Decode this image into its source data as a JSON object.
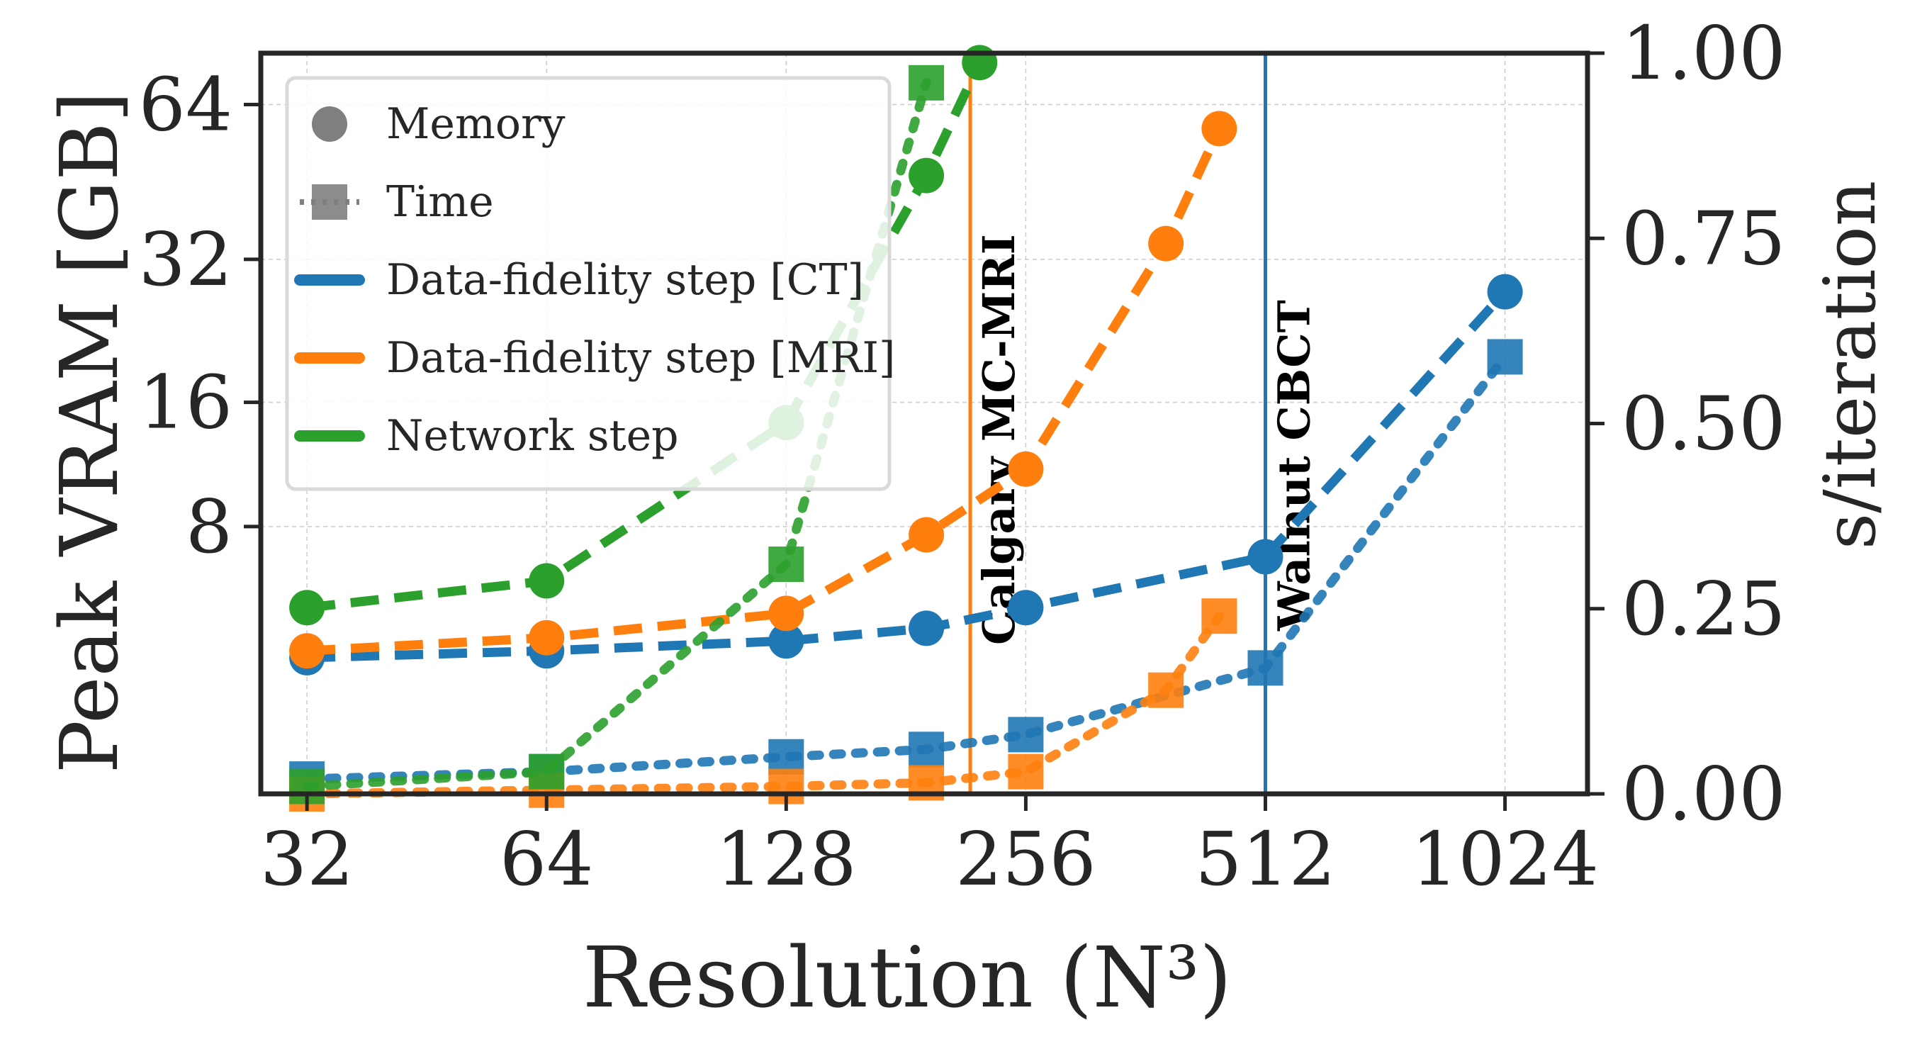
{
  "chart_data": {
    "type": "line",
    "xlabel": "Resolution (N³)",
    "ylabel_left": "Peak VRAM [GB]",
    "ylabel_right": "s/iteration",
    "x_scale": "log2",
    "x_ticks": [
      32,
      64,
      128,
      256,
      512,
      1024
    ],
    "x_tick_labels": [
      "32",
      "64",
      "128",
      "256",
      "512",
      "1024"
    ],
    "xlim": [
      28,
      1300
    ],
    "y_left_scale": "symlog",
    "y_left_ticks": [
      8,
      16,
      32,
      64
    ],
    "y_left_tick_labels": [
      "8",
      "16",
      "32",
      "64"
    ],
    "y_left_lim": [
      0,
      80
    ],
    "y_right_ticks": [
      0.0,
      0.25,
      0.5,
      0.75,
      1.0
    ],
    "y_right_tick_labels": [
      "0.00",
      "0.25",
      "0.50",
      "0.75",
      "1.00"
    ],
    "y_right_lim": [
      0,
      1
    ],
    "grid": true,
    "legend_position": "top-left",
    "legend": [
      {
        "label": "Memory",
        "kind": "marker-circle",
        "color": "#7f7f7f"
      },
      {
        "label": "Time",
        "kind": "marker-square",
        "color": "#7f7f7f"
      },
      {
        "label": "Data-fidelity step [CT]",
        "kind": "line",
        "color": "#1f77b4"
      },
      {
        "label": "Data-fidelity step [MRI]",
        "kind": "line",
        "color": "#ff7f0e"
      },
      {
        "label": "Network step",
        "kind": "line",
        "color": "#2ca02c"
      }
    ],
    "vertical_lines": [
      {
        "x": 218,
        "label": "Calgary MC-MRI",
        "color": "#ff7f0e"
      },
      {
        "x": 512,
        "label": "Walnut CBCT",
        "color": "#1f77b4"
      }
    ],
    "series": [
      {
        "name": "Data-fidelity step [CT]",
        "metric": "memory",
        "axis": "left",
        "color": "#1f77b4",
        "marker": "circle",
        "style": "dashed",
        "x": [
          32,
          64,
          128,
          192,
          256,
          512,
          1024
        ],
        "y": [
          3.0,
          3.2,
          3.5,
          3.9,
          4.6,
          6.6,
          27.5
        ]
      },
      {
        "name": "Data-fidelity step [CT]",
        "metric": "time",
        "axis": "right",
        "color": "#1f77b4",
        "marker": "square",
        "style": "dotted",
        "x": [
          32,
          64,
          128,
          192,
          256,
          512,
          1024
        ],
        "y": [
          0.02,
          0.03,
          0.05,
          0.06,
          0.08,
          0.17,
          0.59
        ]
      },
      {
        "name": "Data-fidelity step [MRI]",
        "metric": "memory",
        "axis": "left",
        "color": "#ff7f0e",
        "marker": "circle",
        "style": "dashed",
        "x": [
          32,
          64,
          128,
          192,
          256,
          384,
          448
        ],
        "y": [
          3.2,
          3.6,
          4.4,
          7.6,
          11.2,
          34.4,
          57.6
        ]
      },
      {
        "name": "Data-fidelity step [MRI]",
        "metric": "time",
        "axis": "right",
        "color": "#ff7f0e",
        "marker": "square",
        "style": "dotted",
        "x": [
          32,
          64,
          128,
          192,
          256,
          384,
          448
        ],
        "y": [
          0.0,
          0.005,
          0.01,
          0.015,
          0.03,
          0.14,
          0.24
        ]
      },
      {
        "name": "Network step",
        "metric": "memory",
        "axis": "left",
        "color": "#2ca02c",
        "marker": "circle",
        "style": "dashed",
        "x": [
          32,
          64,
          128,
          192,
          224
        ],
        "y": [
          4.6,
          5.6,
          14.4,
          46.8,
          76.8
        ]
      },
      {
        "name": "Network step",
        "metric": "time",
        "axis": "right",
        "color": "#2ca02c",
        "marker": "square",
        "style": "dotted",
        "x": [
          32,
          64,
          128,
          192
        ],
        "y": [
          0.01,
          0.03,
          0.31,
          0.96
        ]
      }
    ]
  }
}
